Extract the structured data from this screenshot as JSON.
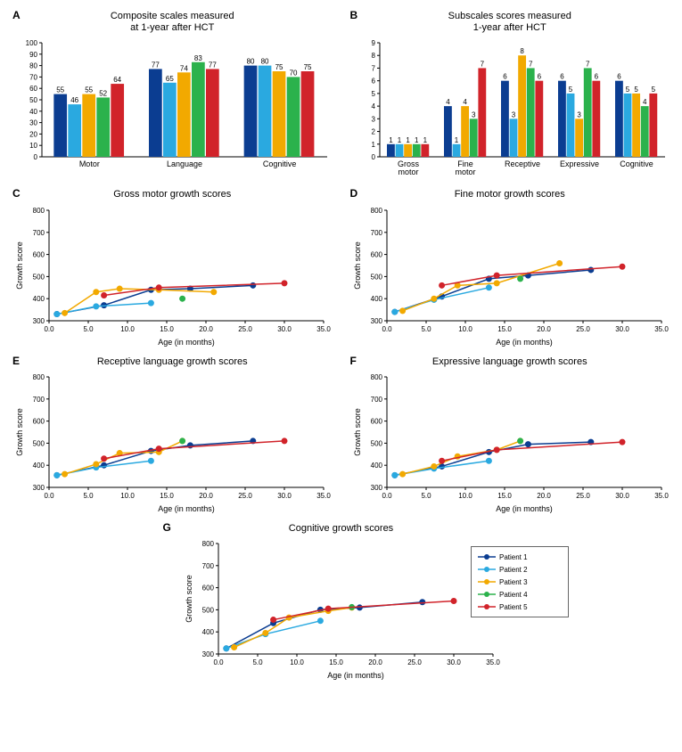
{
  "colors": {
    "p1": "#0b3d91",
    "p2": "#2aa9e0",
    "p3": "#f2a900",
    "p4": "#2bb24c",
    "p5": "#d1232a",
    "axis": "#000000",
    "bg": "#ffffff"
  },
  "legend": {
    "items": [
      "Patient 1",
      "Patient 2",
      "Patient 3",
      "Patient 4",
      "Patient 5"
    ]
  },
  "panelA": {
    "label": "A",
    "title": "Composite scales measured\nat 1-year after HCT",
    "type": "bar",
    "ylim": [
      0,
      100
    ],
    "ytick_step": 10,
    "categories": [
      "Motor",
      "Language",
      "Cognitive"
    ],
    "series_colors": [
      "#0b3d91",
      "#2aa9e0",
      "#f2a900",
      "#2bb24c",
      "#d1232a"
    ],
    "values": [
      [
        55,
        46,
        55,
        52,
        64
      ],
      [
        77,
        65,
        74,
        83,
        77
      ],
      [
        80,
        80,
        75,
        70,
        75
      ]
    ],
    "bar_gap": 0.02,
    "group_gap": 0.25
  },
  "panelB": {
    "label": "B",
    "title": "Subscales scores measured\n1-year after HCT",
    "type": "bar",
    "ylim": [
      0,
      9
    ],
    "ytick_step": 1,
    "categories": [
      "Gross\nmotor",
      "Fine\nmotor",
      "Receptive",
      "Expressive",
      "Cognitive"
    ],
    "series_colors": [
      "#0b3d91",
      "#2aa9e0",
      "#f2a900",
      "#2bb24c",
      "#d1232a"
    ],
    "values": [
      [
        1,
        1,
        1,
        1,
        1
      ],
      [
        4,
        1,
        4,
        3,
        7
      ],
      [
        6,
        3,
        8,
        7,
        6
      ],
      [
        6,
        5,
        3,
        7,
        6
      ],
      [
        6,
        5,
        5,
        4,
        5
      ]
    ]
  },
  "lineCommon": {
    "xlim": [
      0,
      35
    ],
    "xtick_step": 5,
    "ylim": [
      300,
      800
    ],
    "ytick_step": 100,
    "xlabel": "Age (in months)",
    "ylabel": "Growth score",
    "series_colors": [
      "#0b3d91",
      "#2aa9e0",
      "#f2a900",
      "#2bb24c",
      "#d1232a"
    ],
    "marker_radius": 3,
    "line_width": 1.5
  },
  "panelC": {
    "label": "C",
    "title": "Gross motor growth scores",
    "series": [
      {
        "x": [
          1,
          7,
          13,
          18,
          26
        ],
        "y": [
          330,
          370,
          440,
          445,
          460
        ]
      },
      {
        "x": [
          1,
          6,
          13
        ],
        "y": [
          330,
          365,
          380
        ]
      },
      {
        "x": [
          2,
          6,
          9,
          14,
          21
        ],
        "y": [
          335,
          430,
          445,
          440,
          430
        ]
      },
      {
        "x": [
          17
        ],
        "y": [
          400
        ]
      },
      {
        "x": [
          7,
          14,
          30
        ],
        "y": [
          415,
          450,
          470
        ]
      }
    ]
  },
  "panelD": {
    "label": "D",
    "title": "Fine motor growth scores",
    "series": [
      {
        "x": [
          1,
          7,
          13,
          18,
          26
        ],
        "y": [
          340,
          410,
          490,
          505,
          530
        ]
      },
      {
        "x": [
          1,
          6,
          13
        ],
        "y": [
          340,
          395,
          450
        ]
      },
      {
        "x": [
          2,
          6,
          9,
          14,
          22
        ],
        "y": [
          345,
          400,
          460,
          470,
          560
        ]
      },
      {
        "x": [
          17
        ],
        "y": [
          490
        ]
      },
      {
        "x": [
          7,
          14,
          30
        ],
        "y": [
          460,
          505,
          545
        ]
      }
    ]
  },
  "panelE": {
    "label": "E",
    "title": "Receptive language growth scores",
    "series": [
      {
        "x": [
          1,
          7,
          13,
          18,
          26
        ],
        "y": [
          355,
          400,
          465,
          490,
          510
        ]
      },
      {
        "x": [
          1,
          6,
          13
        ],
        "y": [
          355,
          390,
          420
        ]
      },
      {
        "x": [
          2,
          6,
          9,
          14,
          17
        ],
        "y": [
          360,
          405,
          455,
          460,
          510
        ]
      },
      {
        "x": [
          17
        ],
        "y": [
          510
        ]
      },
      {
        "x": [
          7,
          14,
          30
        ],
        "y": [
          430,
          475,
          510
        ]
      }
    ]
  },
  "panelF": {
    "label": "F",
    "title": "Expressive language growth scores",
    "series": [
      {
        "x": [
          1,
          7,
          13,
          18,
          26
        ],
        "y": [
          355,
          395,
          460,
          495,
          505
        ]
      },
      {
        "x": [
          1,
          6,
          13
        ],
        "y": [
          355,
          385,
          420
        ]
      },
      {
        "x": [
          2,
          6,
          9,
          14,
          17
        ],
        "y": [
          360,
          395,
          440,
          470,
          510
        ]
      },
      {
        "x": [
          17
        ],
        "y": [
          510
        ]
      },
      {
        "x": [
          7,
          14,
          30
        ],
        "y": [
          420,
          470,
          505
        ]
      }
    ]
  },
  "panelG": {
    "label": "G",
    "title": "Cognitive growth scores",
    "series": [
      {
        "x": [
          1,
          7,
          13,
          18,
          26
        ],
        "y": [
          325,
          440,
          500,
          510,
          535
        ]
      },
      {
        "x": [
          1,
          6,
          13
        ],
        "y": [
          325,
          390,
          450
        ]
      },
      {
        "x": [
          2,
          6,
          9,
          14,
          17
        ],
        "y": [
          330,
          395,
          465,
          495,
          510
        ]
      },
      {
        "x": [
          17
        ],
        "y": [
          512
        ]
      },
      {
        "x": [
          7,
          14,
          30
        ],
        "y": [
          455,
          505,
          540
        ]
      }
    ]
  }
}
